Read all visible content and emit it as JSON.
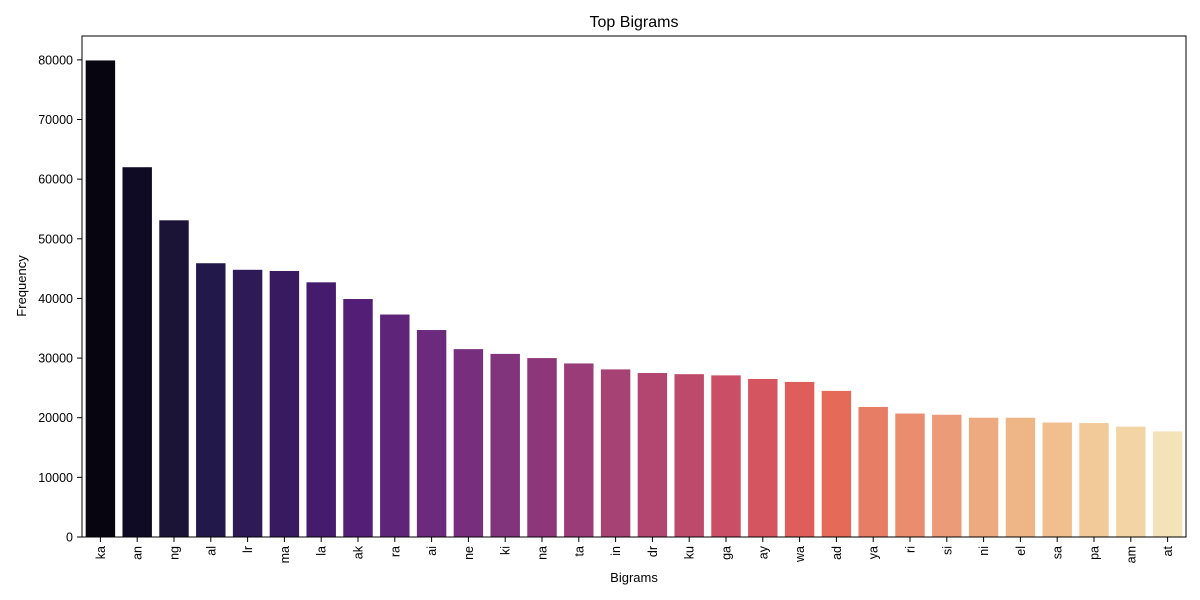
{
  "chart_data": {
    "type": "bar",
    "title": "Top Bigrams",
    "xlabel": "Bigrams",
    "ylabel": "Frequency",
    "ylim": [
      0,
      84000
    ],
    "yticks": [
      "0",
      "10000",
      "20000",
      "30000",
      "40000",
      "50000",
      "60000",
      "70000",
      "80000"
    ],
    "grid": false,
    "legend": "none",
    "palette": "magma",
    "categories": [
      "ka",
      "an",
      "ng",
      "al",
      "lr",
      "ma",
      "la",
      "ak",
      "ra",
      "ai",
      "ne",
      "ki",
      "na",
      "ta",
      "in",
      "dr",
      "ku",
      "ga",
      "ay",
      "wa",
      "ad",
      "ya",
      "ri",
      "si",
      "ni",
      "el",
      "sa",
      "pa",
      "am",
      "at"
    ],
    "values": [
      79900,
      62000,
      53100,
      45900,
      44800,
      44600,
      42700,
      39900,
      37300,
      34700,
      31500,
      30700,
      30000,
      29100,
      28100,
      27500,
      27300,
      27100,
      26500,
      26000,
      24500,
      21800,
      20700,
      20500,
      20000,
      20000,
      19200,
      19100,
      18500,
      17700
    ],
    "colors": [
      "#07050f",
      "#100b25",
      "#1c1437",
      "#23184a",
      "#2d1a57",
      "#381a60",
      "#451c6d",
      "#521e76",
      "#5e2479",
      "#6b2a7b",
      "#772e7d",
      "#81347c",
      "#8d377a",
      "#9a3c77",
      "#a74274",
      "#b34670",
      "#be4a6b",
      "#c94e66",
      "#d45560",
      "#dd5e5a",
      "#e56b58",
      "#e87d66",
      "#ea8d6f",
      "#ec9b79",
      "#eda97f",
      "#eeb686",
      "#f0bf8d",
      "#f2c999",
      "#f3d4a4",
      "#f4e2b9"
    ]
  }
}
